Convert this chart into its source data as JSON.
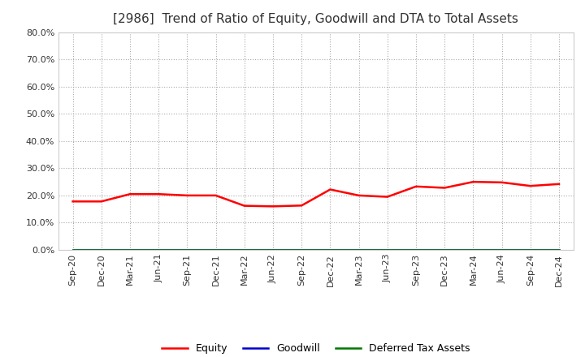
{
  "title": "[2986]  Trend of Ratio of Equity, Goodwill and DTA to Total Assets",
  "title_color": "#333333",
  "title_fontsize": 11,
  "background_color": "#ffffff",
  "plot_bg_color": "#ffffff",
  "grid_color": "#aaaaaa",
  "ylim": [
    0.0,
    0.8
  ],
  "yticks": [
    0.0,
    0.1,
    0.2,
    0.3,
    0.4,
    0.5,
    0.6,
    0.7,
    0.8
  ],
  "x_labels": [
    "Sep-20",
    "Dec-20",
    "Mar-21",
    "Jun-21",
    "Sep-21",
    "Dec-21",
    "Mar-22",
    "Jun-22",
    "Sep-22",
    "Dec-22",
    "Mar-23",
    "Jun-23",
    "Sep-23",
    "Dec-23",
    "Mar-24",
    "Jun-24",
    "Sep-24",
    "Dec-24"
  ],
  "equity": [
    0.178,
    0.178,
    0.205,
    0.205,
    0.2,
    0.2,
    0.162,
    0.16,
    0.163,
    0.222,
    0.2,
    0.195,
    0.233,
    0.228,
    0.25,
    0.248,
    0.235,
    0.242
  ],
  "goodwill": [
    0.001,
    0.001,
    0.001,
    0.001,
    0.001,
    0.001,
    0.001,
    0.001,
    0.001,
    0.001,
    0.001,
    0.001,
    0.001,
    0.001,
    0.001,
    0.001,
    0.001,
    0.001
  ],
  "dta": [
    0.001,
    0.001,
    0.001,
    0.001,
    0.001,
    0.001,
    0.001,
    0.001,
    0.001,
    0.001,
    0.001,
    0.001,
    0.001,
    0.001,
    0.001,
    0.001,
    0.001,
    0.001
  ],
  "equity_color": "#ff0000",
  "goodwill_color": "#0000cc",
  "dta_color": "#007700",
  "line_width": 1.8,
  "legend_labels": [
    "Equity",
    "Goodwill",
    "Deferred Tax Assets"
  ]
}
